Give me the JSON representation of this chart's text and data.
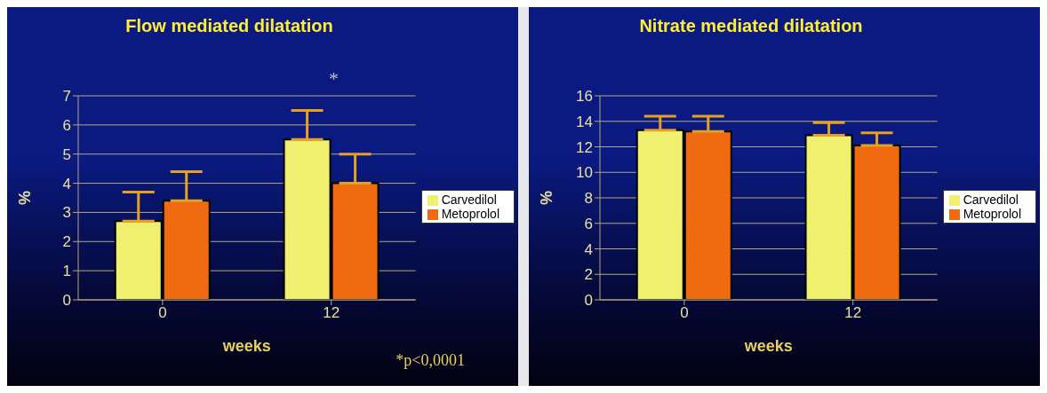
{
  "chart_data": [
    {
      "type": "bar",
      "title": "Flow mediated dilatation",
      "xlabel": "weeks",
      "ylabel": "%",
      "categories": [
        "0",
        "12"
      ],
      "series": [
        {
          "name": "Carvedilol",
          "color": "#f0f070",
          "values": [
            2.7,
            5.5
          ],
          "errors": [
            [
              2.7,
              3.7
            ],
            [
              5.5,
              6.5
            ]
          ]
        },
        {
          "name": "Metoprolol",
          "color": "#f06a10",
          "values": [
            3.4,
            4.0
          ],
          "errors": [
            [
              3.4,
              4.4
            ],
            [
              4.0,
              5.0
            ]
          ]
        }
      ],
      "ylim": [
        0,
        7
      ],
      "yticks": [
        0,
        1,
        2,
        3,
        4,
        5,
        6,
        7
      ],
      "grid": "y",
      "legend": "right",
      "annotations": [
        "*",
        "*p<0,0001"
      ]
    },
    {
      "type": "bar",
      "title": "Nitrate mediated dilatation",
      "xlabel": "weeks",
      "ylabel": "%",
      "categories": [
        "0",
        "12"
      ],
      "series": [
        {
          "name": "Carvedilol",
          "color": "#f0f070",
          "values": [
            13.3,
            12.9
          ],
          "errors": [
            [
              13.3,
              14.4
            ],
            [
              12.9,
              13.9
            ]
          ]
        },
        {
          "name": "Metoprolol",
          "color": "#f06a10",
          "values": [
            13.2,
            12.1
          ],
          "errors": [
            [
              13.2,
              14.4
            ],
            [
              12.1,
              13.1
            ]
          ]
        }
      ],
      "ylim": [
        0,
        16
      ],
      "yticks": [
        0,
        2,
        4,
        6,
        8,
        10,
        12,
        14,
        16
      ],
      "grid": "y",
      "legend": "right"
    }
  ]
}
